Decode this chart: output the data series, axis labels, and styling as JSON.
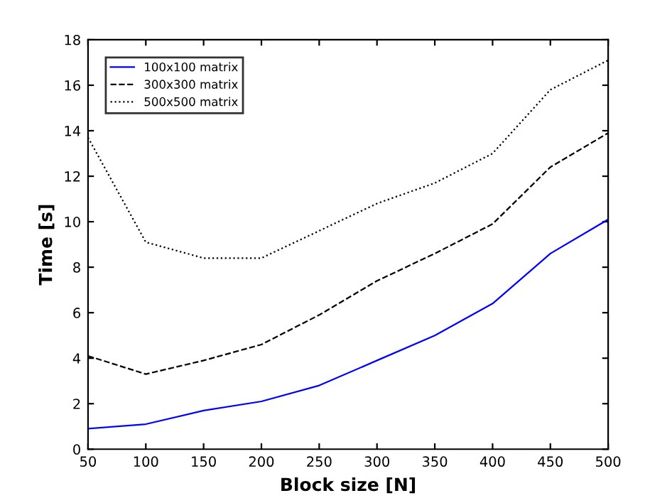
{
  "chart_data": {
    "type": "line",
    "xlabel": "Block size [N]",
    "ylabel": "Time [s]",
    "x": [
      50,
      100,
      150,
      200,
      250,
      300,
      350,
      400,
      450,
      500
    ],
    "series": [
      {
        "name": "100x100 matrix",
        "color": "#0000ff",
        "line_style": "solid",
        "values": [
          0.9,
          1.1,
          1.7,
          2.1,
          2.8,
          3.9,
          5.0,
          6.4,
          8.6,
          10.1
        ]
      },
      {
        "name": "300x300 matrix",
        "color": "#000000",
        "line_style": "dashed",
        "values": [
          4.1,
          3.3,
          3.9,
          4.6,
          5.9,
          7.4,
          8.6,
          9.9,
          12.4,
          13.9
        ]
      },
      {
        "name": "500x500 matrix",
        "color": "#000000",
        "line_style": "dotted",
        "values": [
          13.7,
          9.1,
          8.4,
          8.4,
          9.6,
          10.8,
          11.7,
          13.0,
          15.8,
          17.1
        ]
      }
    ],
    "xlim": [
      50,
      500
    ],
    "xticks": [
      50,
      100,
      150,
      200,
      250,
      300,
      350,
      400,
      450,
      500
    ],
    "ylim": [
      0,
      18
    ],
    "yticks": [
      0,
      2,
      4,
      6,
      8,
      10,
      12,
      14,
      16,
      18
    ],
    "grid": false,
    "legend": "top left",
    "marker": "none"
  }
}
